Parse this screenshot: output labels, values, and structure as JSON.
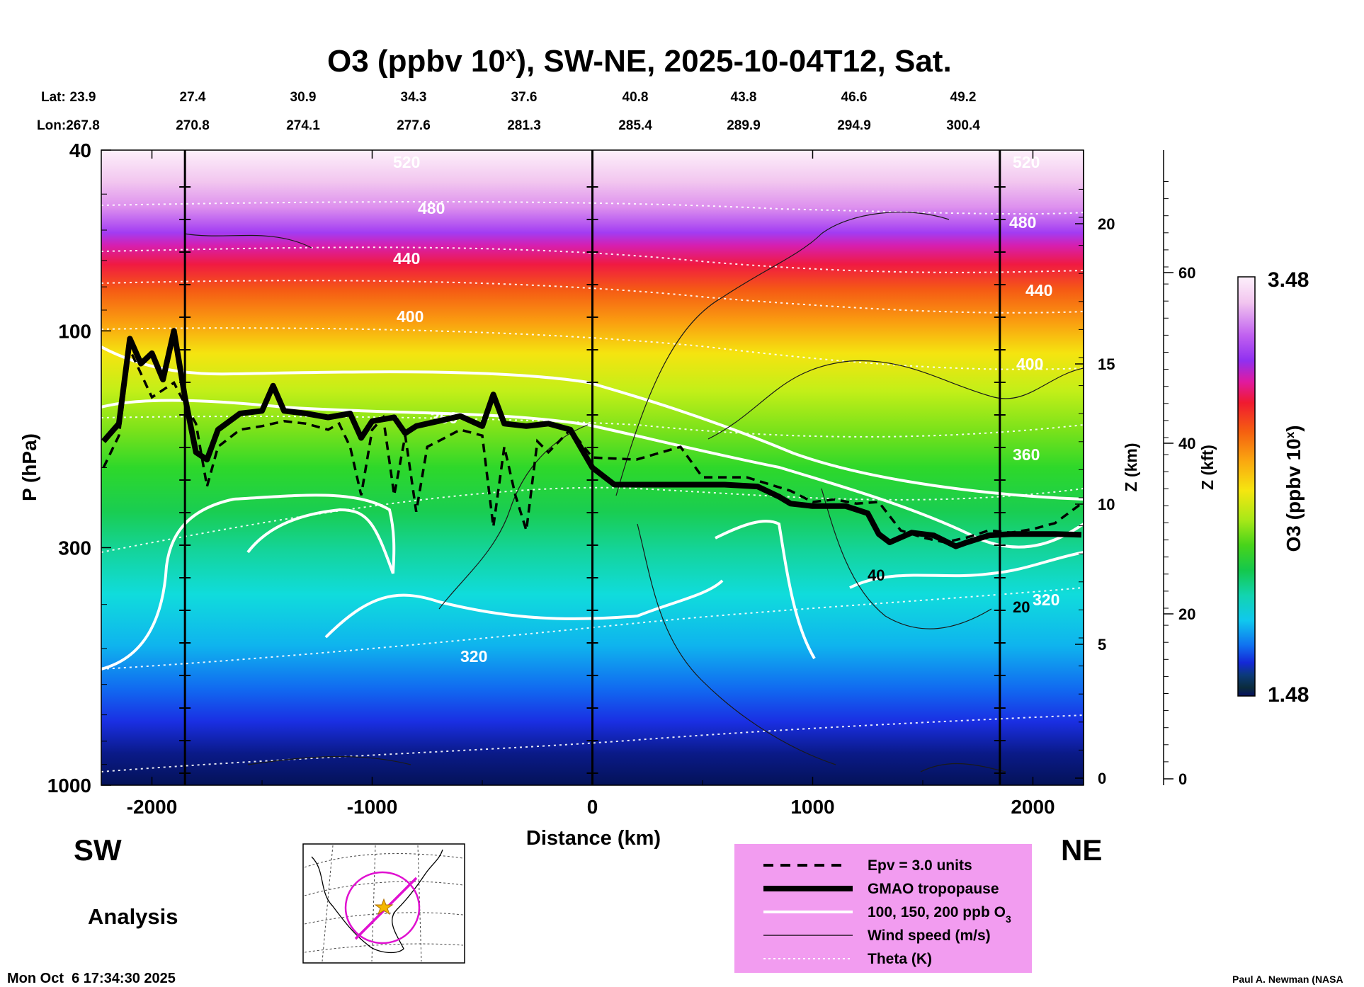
{
  "chart_data": {
    "type": "heatmap",
    "title": {
      "prefix": "O3 (ppbv 10",
      "sup": "x",
      "suffix": "), SW-NE, 2025-10-04T12, Sat."
    },
    "lat_label": "Lat:",
    "lon_label": "Lon:",
    "lat_values": [
      "23.9",
      "27.4",
      "30.9",
      "34.3",
      "37.6",
      "40.8",
      "43.8",
      "46.6",
      "49.2"
    ],
    "lon_values": [
      "267.8",
      "270.8",
      "274.1",
      "277.6",
      "281.3",
      "285.4",
      "289.9",
      "294.9",
      "300.4"
    ],
    "xlabel": "Distance (km)",
    "ylabel": "P (hPa)",
    "x_range": [
      -2230,
      2230
    ],
    "x_ticks": [
      -2000,
      -1000,
      0,
      1000,
      2000
    ],
    "x_tick_labels": [
      "-2000",
      "-1000",
      "0",
      "1000",
      "2000"
    ],
    "y_range_hpa": [
      40,
      1000
    ],
    "y_scale": "log",
    "y_ticks_hpa": [
      40,
      100,
      300,
      1000
    ],
    "y_tick_labels": [
      "40",
      "100",
      "300",
      "1000"
    ],
    "z_km_label": "Z (km)",
    "z_km_ticks": [
      "0",
      "5",
      "10",
      "15",
      "20"
    ],
    "z_kft_label": "Z (kft)",
    "z_kft_ticks": [
      "0",
      "20",
      "40",
      "60"
    ],
    "colorbar": {
      "label_prefix": "O3 (ppbv 10",
      "label_sup": "x",
      "label_suffix": ")",
      "max_label": "3.48",
      "min_label": "1.48",
      "range": [
        1.48,
        3.48
      ]
    },
    "vertical_markers_km": [
      -1850,
      0,
      1850
    ],
    "theta_contour_labels": [
      "320",
      "360",
      "400",
      "440",
      "480",
      "520"
    ],
    "ozone_contour_label": "320",
    "wind_labels": [
      "20",
      "40"
    ],
    "tropopause_km": {
      "x": [
        -2220,
        -2150,
        -2100,
        -2050,
        -2000,
        -1950,
        -1900,
        -1850,
        -1800,
        -1750,
        -1700,
        -1600,
        -1500,
        -1450,
        -1400,
        -1300,
        -1200,
        -1100,
        -1050,
        -1000,
        -900,
        -850,
        -800,
        -700,
        -600,
        -500,
        -450,
        -400,
        -300,
        -200,
        -100,
        0,
        100,
        300,
        600,
        750,
        850,
        900,
        1000,
        1150,
        1250,
        1300,
        1350,
        1450,
        1550,
        1650,
        1700,
        1800,
        1900,
        2000,
        2100,
        2220
      ],
      "p_hpa": [
        175,
        160,
        104,
        118,
        112,
        128,
        100,
        140,
        185,
        192,
        165,
        152,
        150,
        132,
        150,
        152,
        155,
        152,
        172,
        158,
        155,
        168,
        162,
        158,
        154,
        162,
        138,
        160,
        162,
        160,
        165,
        200,
        218,
        218,
        218,
        220,
        232,
        240,
        243,
        243,
        252,
        280,
        292,
        278,
        282,
        298,
        292,
        282,
        280,
        280,
        280,
        281
      ]
    },
    "epv_km": {
      "x": [
        -2220,
        -2150,
        -2100,
        -2000,
        -1900,
        -1850,
        -1800,
        -1750,
        -1700,
        -1600,
        -1500,
        -1400,
        -1300,
        -1200,
        -1150,
        -1100,
        -1050,
        -1000,
        -950,
        -900,
        -850,
        -800,
        -750,
        -700,
        -600,
        -500,
        -450,
        -400,
        -350,
        -300,
        -250,
        -200,
        -100,
        0,
        200,
        400,
        500,
        700,
        900,
        1000,
        1100,
        1200,
        1300,
        1400,
        1500,
        1600,
        1700,
        1800,
        1900,
        2000,
        2100,
        2220
      ],
      "p_hpa": [
        200,
        170,
        110,
        140,
        130,
        145,
        160,
        220,
        180,
        165,
        162,
        158,
        160,
        165,
        160,
        180,
        230,
        165,
        155,
        230,
        170,
        250,
        180,
        175,
        165,
        170,
        270,
        180,
        230,
        275,
        175,
        185,
        165,
        190,
        192,
        180,
        210,
        210,
        225,
        238,
        235,
        240,
        238,
        275,
        285,
        292,
        285,
        275,
        278,
        273,
        265,
        240
      ]
    },
    "legend": {
      "epv": "Epv = 3.0 units",
      "tropopause": "GMAO tropopause",
      "ozone": "100, 150, 200 ppb O",
      "ozone_sub": "3",
      "wind": "Wind speed (m/s)",
      "theta": "Theta (K)"
    },
    "direction_left": "SW",
    "direction_right": "NE",
    "analysis_label": "Analysis",
    "timestamp": "Mon Oct  6 17:34:30 2025",
    "author": "Paul A. Newman (NASA"
  }
}
